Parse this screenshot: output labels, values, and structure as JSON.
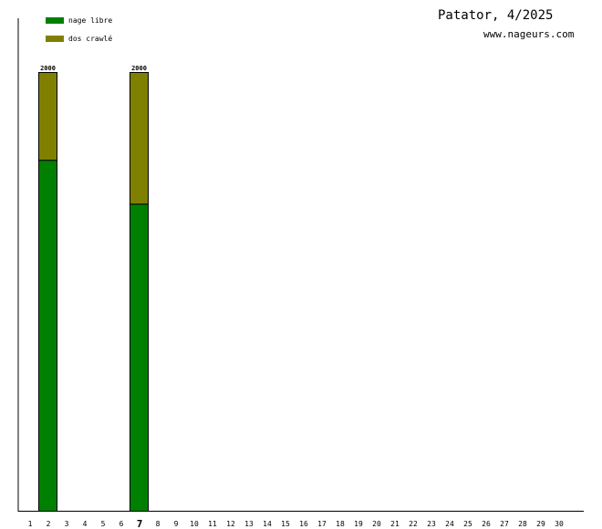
{
  "chart_data": {
    "type": "bar",
    "stacked": true,
    "title": "Patator, 4/2025",
    "subtitle": "www.nageurs.com",
    "categories": [
      "1",
      "2",
      "3",
      "4",
      "5",
      "6",
      "7",
      "8",
      "9",
      "10",
      "11",
      "12",
      "13",
      "14",
      "15",
      "16",
      "17",
      "18",
      "19",
      "20",
      "21",
      "22",
      "23",
      "24",
      "25",
      "26",
      "27",
      "28",
      "29",
      "30"
    ],
    "highlighted_category": "7",
    "ylim": [
      0,
      2000
    ],
    "grid": false,
    "legend_position": "top-left",
    "series": [
      {
        "name": "nage libre",
        "color": "#008000",
        "values": [
          0,
          1600,
          0,
          0,
          0,
          0,
          1400,
          0,
          0,
          0,
          0,
          0,
          0,
          0,
          0,
          0,
          0,
          0,
          0,
          0,
          0,
          0,
          0,
          0,
          0,
          0,
          0,
          0,
          0,
          0
        ]
      },
      {
        "name": "dos crawlé",
        "color": "#808000",
        "values": [
          0,
          400,
          0,
          0,
          0,
          0,
          600,
          0,
          0,
          0,
          0,
          0,
          0,
          0,
          0,
          0,
          0,
          0,
          0,
          0,
          0,
          0,
          0,
          0,
          0,
          0,
          0,
          0,
          0,
          0
        ]
      }
    ],
    "totals": [
      0,
      2000,
      0,
      0,
      0,
      0,
      2000,
      0,
      0,
      0,
      0,
      0,
      0,
      0,
      0,
      0,
      0,
      0,
      0,
      0,
      0,
      0,
      0,
      0,
      0,
      0,
      0,
      0,
      0,
      0
    ],
    "total_labels": [
      "",
      "2000",
      "",
      "",
      "",
      "",
      "2000",
      "",
      "",
      "",
      "",
      "",
      "",
      "",
      "",
      "",
      "",
      "",
      "",
      "",
      "",
      "",
      "",
      "",
      "",
      "",
      "",
      "",
      "",
      ""
    ]
  }
}
